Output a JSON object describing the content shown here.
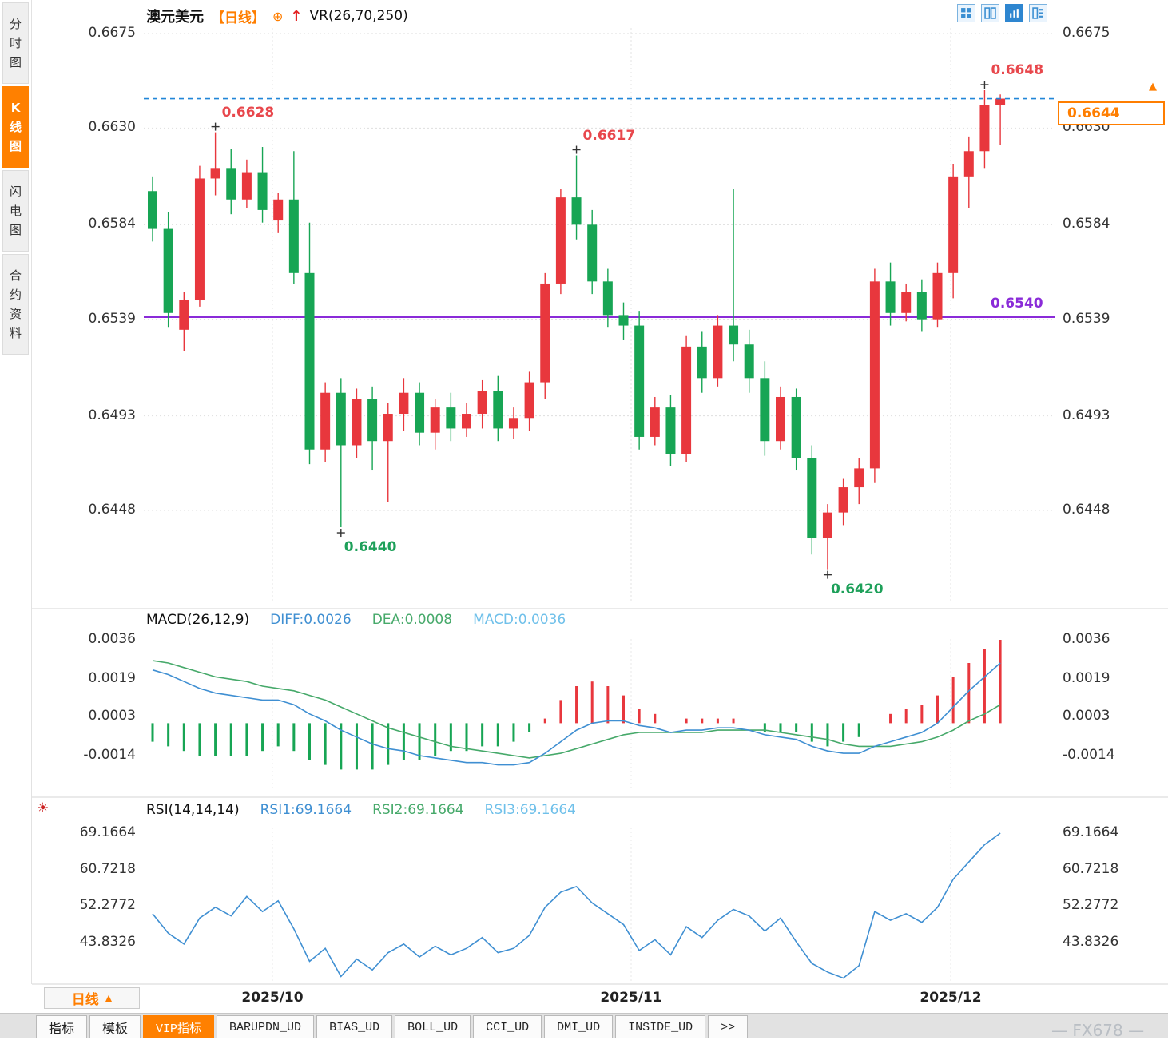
{
  "colors": {
    "up": "#e8373d",
    "down": "#17a554",
    "support": "#8a2bd8",
    "last_price_line": "#2186d8",
    "diff_line": "#3f8fd2",
    "dea_line": "#46a96a",
    "accent_orange": "#ff7e00",
    "light_blue": "#6fc0ea"
  },
  "sidebar": {
    "tabs": [
      {
        "label": "分时图",
        "selected": false
      },
      {
        "label": "K线图",
        "selected": true
      },
      {
        "label": "闪电图",
        "selected": false
      },
      {
        "label": "合约资料",
        "selected": false
      }
    ]
  },
  "header": {
    "symbol": "澳元美元",
    "period_tag": "【日线】",
    "plus_icon": "⊕",
    "arrow_icon": "↑",
    "indicator": "VR(26,70,250)"
  },
  "price_panel": {
    "hline": {
      "label": "0.6540"
    },
    "last_price": {
      "label": "0.6644"
    },
    "latest_marker": "▲",
    "annotations": [
      {
        "label": "0.6628",
        "candle": 5,
        "type": "high"
      },
      {
        "label": "0.6617",
        "candle": 28,
        "type": "high"
      },
      {
        "label": "0.6648",
        "candle": 54,
        "type": "high"
      },
      {
        "label": "0.6440",
        "candle": 13,
        "type": "low"
      },
      {
        "label": "0.6420",
        "candle": 44,
        "type": "low"
      }
    ]
  },
  "chart_data": [
    {
      "type": "candlestick",
      "symbol": "澳元美元",
      "period": "日线",
      "x_labels": [
        "2025/10",
        "2025/11",
        "2025/12"
      ],
      "y_ticks": [
        0.6675,
        0.663,
        0.6584,
        0.6539,
        0.6493,
        0.6448
      ],
      "support_line": 0.654,
      "last_price": 0.6644,
      "candles": [
        [
          0.66,
          0.6607,
          0.6576,
          0.6582
        ],
        [
          0.6582,
          0.659,
          0.6535,
          0.6542
        ],
        [
          0.6534,
          0.6552,
          0.6524,
          0.6548
        ],
        [
          0.6548,
          0.6612,
          0.6545,
          0.6606
        ],
        [
          0.6606,
          0.6628,
          0.6598,
          0.6611
        ],
        [
          0.6611,
          0.662,
          0.6589,
          0.6596
        ],
        [
          0.6596,
          0.6615,
          0.6592,
          0.6609
        ],
        [
          0.6609,
          0.6621,
          0.6585,
          0.6591
        ],
        [
          0.6586,
          0.6599,
          0.658,
          0.6596
        ],
        [
          0.6596,
          0.6619,
          0.6556,
          0.6561
        ],
        [
          0.6561,
          0.6585,
          0.647,
          0.6477
        ],
        [
          0.6477,
          0.6509,
          0.6471,
          0.6504
        ],
        [
          0.6504,
          0.6511,
          0.644,
          0.6479
        ],
        [
          0.6479,
          0.6506,
          0.6473,
          0.6501
        ],
        [
          0.6501,
          0.6507,
          0.6467,
          0.6481
        ],
        [
          0.6481,
          0.6499,
          0.6452,
          0.6494
        ],
        [
          0.6494,
          0.6511,
          0.6486,
          0.6504
        ],
        [
          0.6504,
          0.6509,
          0.6479,
          0.6485
        ],
        [
          0.6485,
          0.6501,
          0.6477,
          0.6497
        ],
        [
          0.6497,
          0.6504,
          0.6481,
          0.6487
        ],
        [
          0.6487,
          0.6499,
          0.6483,
          0.6494
        ],
        [
          0.6494,
          0.651,
          0.6487,
          0.6505
        ],
        [
          0.6505,
          0.6512,
          0.6481,
          0.6487
        ],
        [
          0.6487,
          0.6497,
          0.6482,
          0.6492
        ],
        [
          0.6492,
          0.6514,
          0.6486,
          0.6509
        ],
        [
          0.6509,
          0.6561,
          0.6501,
          0.6556
        ],
        [
          0.6556,
          0.6601,
          0.6551,
          0.6597
        ],
        [
          0.6597,
          0.6617,
          0.6577,
          0.6584
        ],
        [
          0.6584,
          0.6591,
          0.6551,
          0.6557
        ],
        [
          0.6557,
          0.6563,
          0.6535,
          0.6541
        ],
        [
          0.6541,
          0.6547,
          0.6529,
          0.6536
        ],
        [
          0.6536,
          0.6543,
          0.6477,
          0.6483
        ],
        [
          0.6483,
          0.6502,
          0.6479,
          0.6497
        ],
        [
          0.6497,
          0.6503,
          0.6469,
          0.6475
        ],
        [
          0.6475,
          0.6531,
          0.6471,
          0.6526
        ],
        [
          0.6526,
          0.6533,
          0.6504,
          0.6511
        ],
        [
          0.6511,
          0.6541,
          0.6507,
          0.6536
        ],
        [
          0.6536,
          0.6601,
          0.6519,
          0.6527
        ],
        [
          0.6527,
          0.6534,
          0.6504,
          0.6511
        ],
        [
          0.6511,
          0.6519,
          0.6474,
          0.6481
        ],
        [
          0.6481,
          0.6507,
          0.6477,
          0.6502
        ],
        [
          0.6502,
          0.6506,
          0.6467,
          0.6473
        ],
        [
          0.6473,
          0.6479,
          0.6427,
          0.6435
        ],
        [
          0.6435,
          0.6451,
          0.642,
          0.6447
        ],
        [
          0.6447,
          0.6463,
          0.6441,
          0.6459
        ],
        [
          0.6459,
          0.6473,
          0.6451,
          0.6468
        ],
        [
          0.6468,
          0.6563,
          0.6461,
          0.6557
        ],
        [
          0.6557,
          0.6566,
          0.6536,
          0.6542
        ],
        [
          0.6542,
          0.6556,
          0.6538,
          0.6552
        ],
        [
          0.6552,
          0.6558,
          0.6533,
          0.6539
        ],
        [
          0.6539,
          0.6566,
          0.6535,
          0.6561
        ],
        [
          0.6561,
          0.6613,
          0.6549,
          0.6607
        ],
        [
          0.6607,
          0.6626,
          0.6592,
          0.6619
        ],
        [
          0.6619,
          0.6648,
          0.6611,
          0.6641
        ],
        [
          0.6641,
          0.6646,
          0.6622,
          0.6644
        ]
      ]
    },
    {
      "type": "bar+line",
      "name": "MACD(26,12,9)",
      "legend": [
        "DIFF:0.0026",
        "DEA:0.0008",
        "MACD:0.0036"
      ],
      "y_ticks": [
        0.0036,
        0.0019,
        0.0003,
        -0.0014
      ],
      "diff": [
        0.0023,
        0.0021,
        0.0018,
        0.0015,
        0.0013,
        0.0012,
        0.0011,
        0.001,
        0.001,
        0.0008,
        0.0004,
        0.0001,
        -0.0003,
        -0.0006,
        -0.0009,
        -0.0011,
        -0.0012,
        -0.0014,
        -0.0015,
        -0.0016,
        -0.0017,
        -0.0017,
        -0.0018,
        -0.0018,
        -0.0017,
        -0.0013,
        -0.0008,
        -0.0003,
        0.0,
        0.0001,
        0.0001,
        -0.0001,
        -0.0002,
        -0.0004,
        -0.0003,
        -0.0003,
        -0.0002,
        -0.0002,
        -0.0003,
        -0.0005,
        -0.0006,
        -0.0007,
        -0.001,
        -0.0012,
        -0.0013,
        -0.0013,
        -0.001,
        -0.0008,
        -0.0006,
        -0.0004,
        0.0,
        0.0007,
        0.0014,
        0.002,
        0.0026
      ],
      "dea": [
        0.0027,
        0.0026,
        0.0024,
        0.0022,
        0.002,
        0.0019,
        0.0018,
        0.0016,
        0.0015,
        0.0014,
        0.0012,
        0.001,
        0.0007,
        0.0004,
        0.0001,
        -0.0002,
        -0.0004,
        -0.0006,
        -0.0008,
        -0.001,
        -0.0011,
        -0.0012,
        -0.0013,
        -0.0014,
        -0.0015,
        -0.0014,
        -0.0013,
        -0.0011,
        -0.0009,
        -0.0007,
        -0.0005,
        -0.0004,
        -0.0004,
        -0.0004,
        -0.0004,
        -0.0004,
        -0.0003,
        -0.0003,
        -0.0003,
        -0.0003,
        -0.0004,
        -0.0005,
        -0.0006,
        -0.0007,
        -0.0009,
        -0.001,
        -0.001,
        -0.001,
        -0.0009,
        -0.0008,
        -0.0006,
        -0.0003,
        0.0001,
        0.0004,
        0.0008
      ]
    },
    {
      "type": "line",
      "name": "RSI(14,14,14)",
      "legend": [
        "RSI1:69.1664",
        "RSI2:69.1664",
        "RSI3:69.1664"
      ],
      "y_ticks": [
        69.1664,
        60.7218,
        52.2772,
        43.8326
      ],
      "series": [
        50.5,
        46.0,
        43.5,
        49.5,
        52.0,
        50.0,
        54.5,
        51.0,
        53.5,
        47.0,
        39.5,
        42.5,
        36.0,
        40.0,
        37.5,
        41.5,
        43.5,
        40.5,
        43.0,
        41.0,
        42.5,
        45.0,
        41.5,
        42.5,
        45.5,
        52.0,
        55.5,
        56.8,
        53.0,
        50.5,
        48.0,
        42.0,
        44.5,
        41.0,
        47.5,
        45.0,
        49.0,
        51.5,
        50.0,
        46.5,
        49.5,
        44.0,
        39.0,
        37.0,
        35.6,
        38.5,
        51.0,
        49.0,
        50.5,
        48.5,
        52.0,
        58.5,
        62.5,
        66.5,
        69.1664
      ]
    }
  ],
  "bottom_bar": {
    "period_selector": {
      "label": "日线",
      "arrow": "▲"
    },
    "tabs": [
      {
        "label": "指标"
      },
      {
        "label": "模板"
      },
      {
        "label": "VIP指标",
        "selected": true
      },
      {
        "label": "BARUPDN_UD"
      },
      {
        "label": "BIAS_UD"
      },
      {
        "label": "BOLL_UD"
      },
      {
        "label": "CCI_UD"
      },
      {
        "label": "DMI_UD"
      },
      {
        "label": "INSIDE_UD"
      },
      {
        "label": ">>"
      }
    ]
  },
  "watermark": "— FX678 —"
}
